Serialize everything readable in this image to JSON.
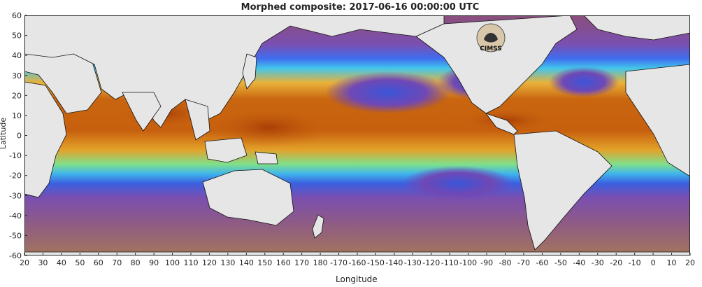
{
  "title": "Morphed composite: 2017-06-16 00:00:00 UTC",
  "x_axis_label": "Longitude",
  "y_axis_label": "Latitude",
  "x_ticks": [
    "20",
    "30",
    "40",
    "50",
    "60",
    "70",
    "80",
    "90",
    "100",
    "110",
    "120",
    "130",
    "140",
    "150",
    "160",
    "170",
    "180",
    "-170",
    "-160",
    "-150",
    "-140",
    "-130",
    "-120",
    "-110",
    "-100",
    "-90",
    "-80",
    "-70",
    "-60",
    "-50",
    "-40",
    "-30",
    "-20",
    "-10",
    "0",
    "10",
    "20"
  ],
  "y_ticks": [
    "60",
    "50",
    "40",
    "30",
    "20",
    "10",
    "0",
    "-10",
    "-20",
    "-30",
    "-40",
    "-50",
    "-60"
  ],
  "logo": {
    "name": "CIMSS",
    "text": "CIMSS"
  },
  "colors": {
    "ocean_dry": "#9b5a86",
    "ocean_moist": "#4a6ee0",
    "mid_moist": "#43c2e8",
    "wet": "#e6a020",
    "very_wet": "#c3560c",
    "land": "#e6e6e6"
  },
  "map": {
    "lon_range": [
      "20",
      "20"
    ],
    "lat_range": [
      -60,
      60
    ],
    "projection": "equirectangular"
  }
}
